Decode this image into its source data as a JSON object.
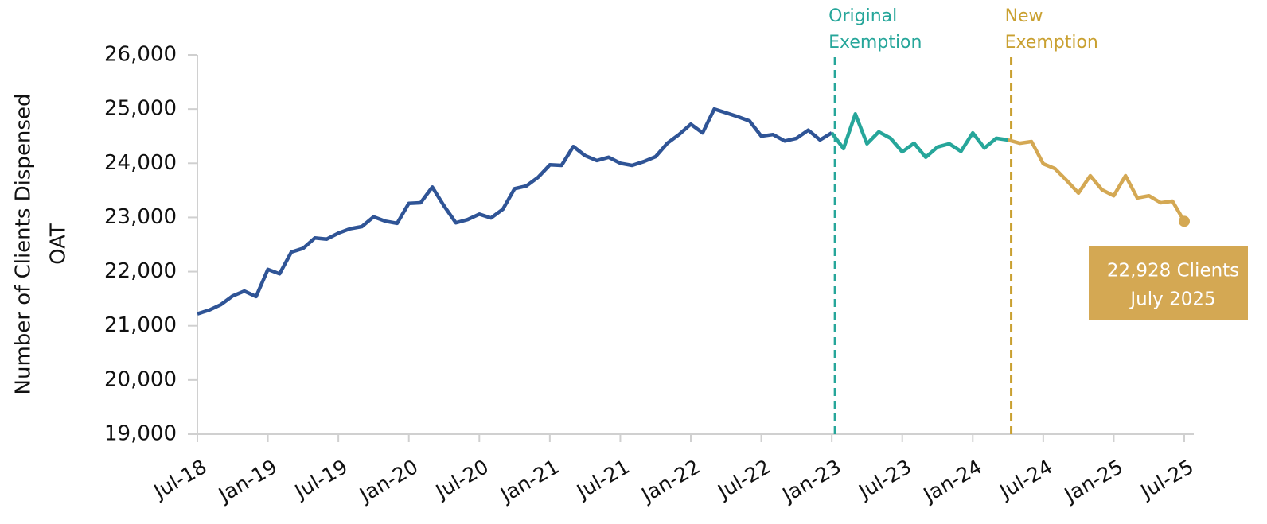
{
  "chart_data": {
    "type": "line",
    "ylabel": [
      "Number of Clients Dispensed",
      "OAT"
    ],
    "categories": [
      "Jul-18",
      null,
      null,
      null,
      null,
      null,
      "Jan-19",
      null,
      null,
      null,
      null,
      null,
      "Jul-19",
      null,
      null,
      null,
      null,
      null,
      "Jan-20",
      null,
      null,
      null,
      null,
      null,
      "Jul-20",
      null,
      null,
      null,
      null,
      null,
      "Jan-21",
      null,
      null,
      null,
      null,
      null,
      "Jul-21",
      null,
      null,
      null,
      null,
      null,
      "Jan-22",
      null,
      null,
      null,
      null,
      null,
      "Jul-22",
      null,
      null,
      null,
      null,
      null,
      "Jan-23",
      null,
      null,
      null,
      null,
      null,
      "Jul-23",
      null,
      null,
      null,
      null,
      null,
      "Jan-24",
      null,
      null,
      null,
      null,
      null,
      "Jul-24",
      null,
      null,
      null,
      null,
      null,
      "Jan-25",
      null,
      null,
      null,
      null,
      null,
      "Jul-25"
    ],
    "series": [
      {
        "color": "#2f5496",
        "values": [
          21220,
          21290,
          21390,
          21550,
          21640,
          21540,
          22040,
          21960,
          22360,
          22430,
          22620,
          22600,
          22710,
          22790,
          22830,
          23010,
          22930,
          22890,
          23260,
          23270,
          23560,
          23210,
          22900,
          22960,
          23060,
          22990,
          23150,
          23530,
          23580,
          23740,
          23970,
          23960,
          24310,
          24140,
          24050,
          24110,
          24000,
          23960,
          24030,
          24120,
          24370,
          24530,
          24720,
          24560,
          25000,
          24930,
          24860,
          24780,
          24500,
          24530,
          24410,
          24460,
          24610,
          24430,
          24560,
          null,
          null,
          null,
          null,
          null,
          null,
          null,
          null,
          null,
          null,
          null,
          null,
          null,
          null,
          null,
          null,
          null,
          null,
          null,
          null,
          null,
          null,
          null,
          null,
          null,
          null,
          null,
          null,
          null,
          null
        ]
      },
      {
        "color": "#26a69a",
        "values": [
          null,
          null,
          null,
          null,
          null,
          null,
          null,
          null,
          null,
          null,
          null,
          null,
          null,
          null,
          null,
          null,
          null,
          null,
          null,
          null,
          null,
          null,
          null,
          null,
          null,
          null,
          null,
          null,
          null,
          null,
          null,
          null,
          null,
          null,
          null,
          null,
          null,
          null,
          null,
          null,
          null,
          null,
          null,
          null,
          null,
          null,
          null,
          null,
          null,
          null,
          null,
          null,
          null,
          null,
          24560,
          24270,
          24910,
          24360,
          24580,
          24460,
          24210,
          24370,
          24110,
          24300,
          24360,
          24220,
          24560,
          24280,
          24460,
          24430,
          null,
          null,
          null,
          null,
          null,
          null,
          null,
          null,
          null,
          null,
          null,
          null,
          null,
          null,
          null
        ]
      },
      {
        "color": "#d4a853",
        "values": [
          null,
          null,
          null,
          null,
          null,
          null,
          null,
          null,
          null,
          null,
          null,
          null,
          null,
          null,
          null,
          null,
          null,
          null,
          null,
          null,
          null,
          null,
          null,
          null,
          null,
          null,
          null,
          null,
          null,
          null,
          null,
          null,
          null,
          null,
          null,
          null,
          null,
          null,
          null,
          null,
          null,
          null,
          null,
          null,
          null,
          null,
          null,
          null,
          null,
          null,
          null,
          null,
          null,
          null,
          null,
          null,
          null,
          null,
          null,
          null,
          null,
          null,
          null,
          null,
          null,
          null,
          null,
          null,
          null,
          24430,
          24370,
          24400,
          23990,
          23900,
          23680,
          23450,
          23770,
          23510,
          23400,
          23770,
          23360,
          23400,
          23270,
          23300,
          22928
        ],
        "value_labels": [
          null,
          null,
          null,
          null,
          null,
          null,
          null,
          null,
          null,
          null,
          null,
          null,
          null,
          null,
          null,
          null,
          null,
          null,
          null,
          null,
          null,
          null,
          null,
          null,
          null,
          null,
          null,
          null,
          null,
          null,
          null,
          null,
          null,
          null,
          null,
          null,
          null,
          null,
          null,
          null,
          null,
          null,
          null,
          null,
          null,
          null,
          null,
          null,
          null,
          null,
          null,
          null,
          null,
          null,
          null,
          null,
          null,
          null,
          null,
          null,
          null,
          null,
          null,
          null,
          null,
          null,
          null,
          null,
          null,
          null,
          null,
          null,
          null,
          null,
          null,
          null,
          null,
          null,
          null,
          null,
          null,
          null,
          null,
          null,
          "22,928 Clients"
        ]
      }
    ],
    "annotations": [
      {
        "at": 54,
        "color": "#26a69a",
        "text": [
          "Original",
          "Exemption"
        ]
      },
      {
        "at": 69,
        "color": "#c9a030",
        "text": [
          "New",
          "Exemption"
        ]
      },
      {
        "at": 84,
        "color": "#ffffff",
        "text": [
          "July 2025"
        ]
      }
    ],
    "ylim": [
      19000,
      26000
    ],
    "yticks": [
      {
        "value": 19000,
        "label": "19,000"
      },
      {
        "value": 20000,
        "label": "20,000"
      },
      {
        "value": 21000,
        "label": "21,000"
      },
      {
        "value": 22000,
        "label": "22,000"
      },
      {
        "value": 23000,
        "label": "23,000"
      },
      {
        "value": 24000,
        "label": "24,000"
      },
      {
        "value": 25000,
        "label": "25,000"
      },
      {
        "value": 26000,
        "label": "26,000"
      }
    ],
    "grid": false
  }
}
